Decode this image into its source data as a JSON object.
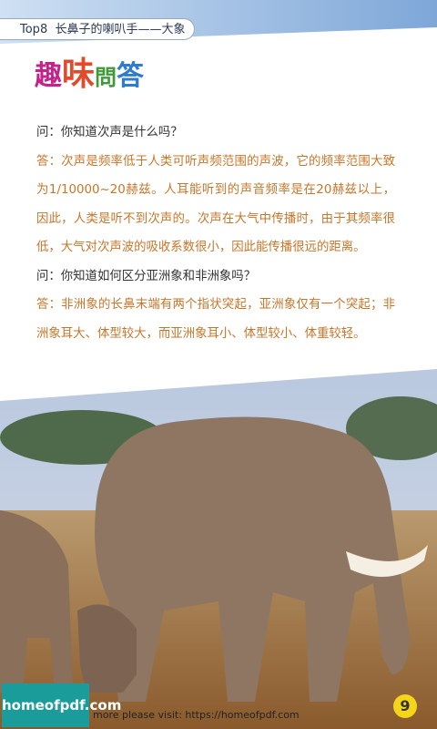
{
  "header": {
    "title": "Top8  长鼻子的喇叭手——大象"
  },
  "logo": [
    "趣",
    "味",
    "問",
    "答"
  ],
  "qa": [
    {
      "question": "问：你知道次声是什么吗？",
      "answer": "答：次声是频率低于人类可听声频范围的声波，它的频率范围大致为1/10000~20赫兹。人耳能听到的声音频率是在20赫兹以上，因此，人类是听不到次声的。次声在大气中传播时，由于其频率很低，大气对次声波的吸收系数很小，因此能传播很远的距离。"
    },
    {
      "question": "问：你知道如何区分亚洲象和非洲象吗？",
      "answer": "答：非洲象的长鼻末端有两个指状突起，亚洲象仅有一个突起；非洲象耳大、体型较大，而亚洲象耳小、体型较小、体重较轻。"
    }
  ],
  "footer": {
    "watermark": "homeofpdf.com",
    "visit": "more please visit: https://homeofpdf.com",
    "page_number": 9
  }
}
